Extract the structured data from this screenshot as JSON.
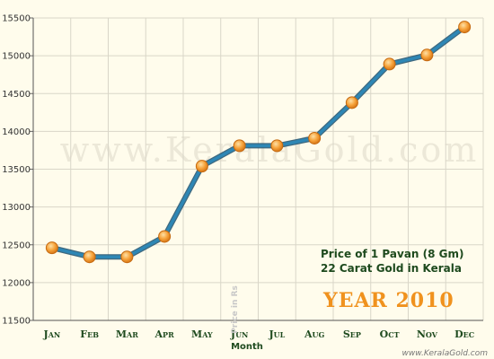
{
  "chart_data": {
    "type": "line",
    "categories": [
      "Jan",
      "Feb",
      "Mar",
      "Apr",
      "May",
      "Jun",
      "Jul",
      "Aug",
      "Sep",
      "Oct",
      "Nov",
      "Dec"
    ],
    "values": [
      12460,
      12340,
      12340,
      12610,
      13540,
      13810,
      13810,
      13910,
      14380,
      14890,
      15010,
      15380
    ],
    "xlabel": "Month",
    "ylabel": "Price in Rs",
    "ylim": [
      11500,
      15500
    ],
    "yticks": [
      11500,
      12000,
      12500,
      13000,
      13500,
      14000,
      14500,
      15000,
      15500
    ],
    "grid": true,
    "legend": "none",
    "line_color": "#2e87b5",
    "marker_color": "#f7a43c"
  },
  "watermark": "www.KeralaGold.com",
  "note_line1": "Price of 1 Pavan (8 Gm)",
  "note_line2": "22 Carat Gold in Kerala",
  "year_label": "YEAR 2010",
  "site_url": "www.KeralaGold.com"
}
